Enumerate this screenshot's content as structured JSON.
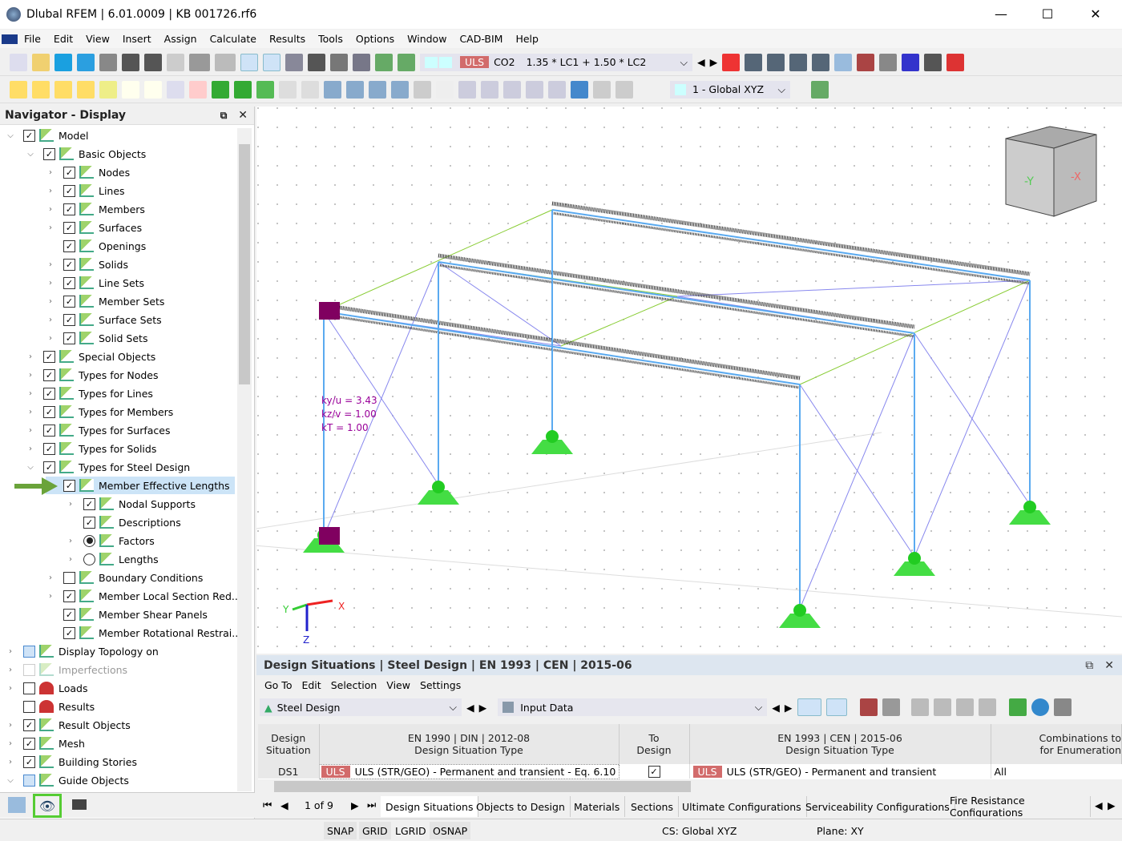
{
  "window": {
    "title": "Dlubal RFEM | 6.01.0009 | KB 001726.rf6",
    "minimize": "—",
    "maximize": "☐",
    "close": "✕"
  },
  "menu": [
    "File",
    "Edit",
    "View",
    "Insert",
    "Assign",
    "Calculate",
    "Results",
    "Tools",
    "Options",
    "Window",
    "CAD-BIM",
    "Help"
  ],
  "toolbar": {
    "uls_badge": "ULS",
    "combo_name": "CO2",
    "combo_formula": "1.35 * LC1 + 1.50 * LC2",
    "coord_system": "1 - Global XYZ"
  },
  "navigator": {
    "title": "Navigator - Display",
    "items": [
      {
        "label": "Model",
        "level": 0,
        "exp": "v",
        "state": "checked"
      },
      {
        "label": "Basic Objects",
        "level": 1,
        "exp": "v",
        "state": "checked"
      },
      {
        "label": "Nodes",
        "level": 2,
        "exp": ">",
        "state": "checked"
      },
      {
        "label": "Lines",
        "level": 2,
        "exp": ">",
        "state": "checked"
      },
      {
        "label": "Members",
        "level": 2,
        "exp": ">",
        "state": "checked"
      },
      {
        "label": "Surfaces",
        "level": 2,
        "exp": ">",
        "state": "checked"
      },
      {
        "label": "Openings",
        "level": 2,
        "exp": "",
        "state": "checked"
      },
      {
        "label": "Solids",
        "level": 2,
        "exp": ">",
        "state": "checked"
      },
      {
        "label": "Line Sets",
        "level": 2,
        "exp": ">",
        "state": "checked"
      },
      {
        "label": "Member Sets",
        "level": 2,
        "exp": ">",
        "state": "checked"
      },
      {
        "label": "Surface Sets",
        "level": 2,
        "exp": ">",
        "state": "checked"
      },
      {
        "label": "Solid Sets",
        "level": 2,
        "exp": ">",
        "state": "checked"
      },
      {
        "label": "Special Objects",
        "level": 1,
        "exp": ">",
        "state": "checked"
      },
      {
        "label": "Types for Nodes",
        "level": 1,
        "exp": ">",
        "state": "checked"
      },
      {
        "label": "Types for Lines",
        "level": 1,
        "exp": ">",
        "state": "checked"
      },
      {
        "label": "Types for Members",
        "level": 1,
        "exp": ">",
        "state": "checked"
      },
      {
        "label": "Types for Surfaces",
        "level": 1,
        "exp": ">",
        "state": "checked"
      },
      {
        "label": "Types for Solids",
        "level": 1,
        "exp": ">",
        "state": "checked"
      },
      {
        "label": "Types for Steel Design",
        "level": 1,
        "exp": "v",
        "state": "checked"
      },
      {
        "label": "Member Effective Lengths",
        "level": 2,
        "exp": "v",
        "state": "checked",
        "selected": true
      },
      {
        "label": "Nodal Supports",
        "level": 3,
        "exp": ">",
        "state": "checked"
      },
      {
        "label": "Descriptions",
        "level": 3,
        "exp": "",
        "state": "checked"
      },
      {
        "label": "Factors",
        "level": 3,
        "exp": ">",
        "state": "radio-on"
      },
      {
        "label": "Lengths",
        "level": 3,
        "exp": ">",
        "state": "radio-off"
      },
      {
        "label": "Boundary Conditions",
        "level": 2,
        "exp": ">",
        "state": "unchecked"
      },
      {
        "label": "Member Local Section Red...",
        "level": 2,
        "exp": ">",
        "state": "checked"
      },
      {
        "label": "Member Shear Panels",
        "level": 2,
        "exp": "",
        "state": "checked"
      },
      {
        "label": "Member Rotational Restrai...",
        "level": 2,
        "exp": "",
        "state": "checked"
      },
      {
        "label": "Display Topology on",
        "level": 0,
        "exp": ">",
        "state": "partial"
      },
      {
        "label": "Imperfections",
        "level": 0,
        "exp": ">",
        "state": "disabled"
      },
      {
        "label": "Loads",
        "level": 0,
        "exp": ">",
        "state": "unchecked"
      },
      {
        "label": "Results",
        "level": 0,
        "exp": "",
        "state": "unchecked"
      },
      {
        "label": "Result Objects",
        "level": 0,
        "exp": ">",
        "state": "checked"
      },
      {
        "label": "Mesh",
        "level": 0,
        "exp": ">",
        "state": "checked"
      },
      {
        "label": "Building Stories",
        "level": 0,
        "exp": ">",
        "state": "checked"
      },
      {
        "label": "Guide Objects",
        "level": 0,
        "exp": "v",
        "state": "partial"
      }
    ]
  },
  "viewport": {
    "k_yu": "ky/u = 3.43",
    "k_zv": "kz/v = 1.00",
    "k_T": "kT = 1.00",
    "axis_x": "X",
    "axis_y": "Y",
    "axis_z": "Z",
    "cube_y": "-Y",
    "cube_x": "-X"
  },
  "panel": {
    "title": "Design Situations | Steel Design | EN 1993 | CEN | 2015-06",
    "menu": [
      "Go To",
      "Edit",
      "Selection",
      "View",
      "Settings"
    ],
    "module": "Steel Design",
    "view": "Input Data",
    "columns": [
      "Design\nSituation",
      "EN 1990 | DIN | 2012-08\nDesign Situation Type",
      "To\nDesign",
      "EN 1993 | CEN | 2015-06\nDesign Situation Type",
      "Combinations to\nfor Enumeration"
    ],
    "rows": [
      {
        "ds": "DS1",
        "type_badge": "ULS",
        "type": "ULS (STR/GEO) - Permanent and transient - Eq. 6.10",
        "to_design": true,
        "type2_badge": "ULS",
        "type2": "ULS (STR/GEO) - Permanent and transient",
        "comb": "All"
      }
    ],
    "pager": "1 of 9",
    "tabs": [
      "Design Situations",
      "Objects to Design",
      "Materials",
      "Sections",
      "Ultimate Configurations",
      "Serviceability Configurations",
      "Fire Resistance Configurations"
    ]
  },
  "status": {
    "snap": "SNAP",
    "grid": "GRID",
    "lgrid": "LGRID",
    "osnap": "OSNAP",
    "cs": "CS: Global XYZ",
    "plane": "Plane: XY"
  },
  "colors": {
    "member": "#5aaaf0",
    "support": "#44dd44",
    "brace": "#8888ee",
    "guide": "#88cc33",
    "annotation": "#990099",
    "uls": "#d26b6b"
  }
}
